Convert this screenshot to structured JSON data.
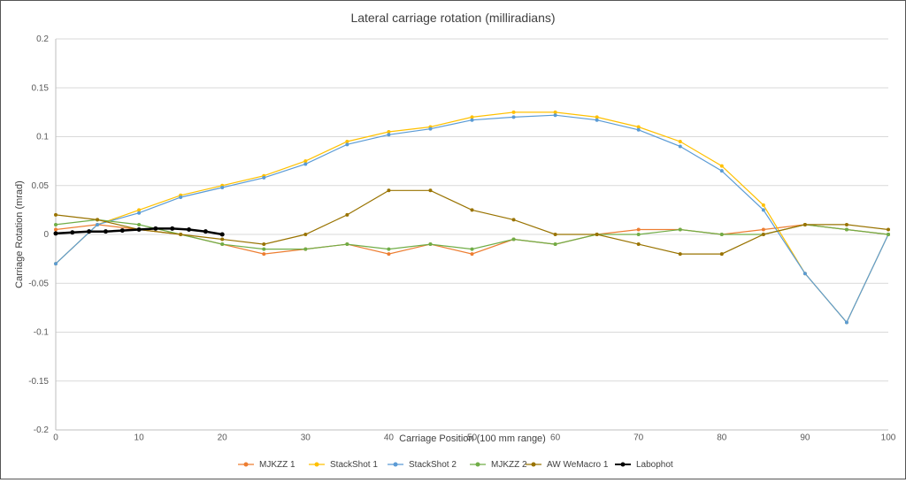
{
  "chart_data": {
    "type": "line",
    "title": "Lateral carriage rotation (milliradians)",
    "xlabel": "Carriage Position (100 mm range)",
    "ylabel": "Carriage Rotation (mrad)",
    "xlim": [
      0,
      100
    ],
    "ylim": [
      -0.2,
      0.2
    ],
    "x_ticks": [
      "0",
      "10",
      "20",
      "30",
      "40",
      "50",
      "60",
      "70",
      "80",
      "90",
      "100"
    ],
    "y_ticks": [
      "0.2",
      "0.15",
      "0.1",
      "0.05",
      "0",
      "-0.05",
      "-0.1",
      "-0.15",
      "-0.2"
    ],
    "grid": "horizontal",
    "legend_position": "bottom",
    "series": [
      {
        "name": "MJKZZ 1",
        "color": "#ED7D31",
        "x": [
          0,
          5,
          10,
          15,
          20,
          25,
          30,
          35,
          40,
          45,
          50,
          55,
          60,
          65,
          70,
          75,
          80,
          85,
          90,
          95,
          100
        ],
        "y": [
          0.005,
          0.01,
          0.005,
          0.0,
          -0.01,
          -0.02,
          -0.015,
          -0.01,
          -0.02,
          -0.01,
          -0.02,
          -0.005,
          -0.01,
          0.0,
          0.005,
          0.005,
          0.0,
          0.005,
          0.01,
          0.005,
          0.0
        ]
      },
      {
        "name": "StackShot 1",
        "color": "#FFC000",
        "x": [
          0,
          5,
          10,
          15,
          20,
          25,
          30,
          35,
          40,
          45,
          50,
          55,
          60,
          65,
          70,
          75,
          80,
          85,
          90,
          95,
          100
        ],
        "y": [
          -0.03,
          0.01,
          0.025,
          0.04,
          0.05,
          0.06,
          0.075,
          0.095,
          0.105,
          0.11,
          0.12,
          0.125,
          0.125,
          0.12,
          0.11,
          0.095,
          0.07,
          0.03,
          -0.04,
          -0.09,
          0.0
        ]
      },
      {
        "name": "StackShot 2",
        "color": "#5B9BD5",
        "x": [
          0,
          5,
          10,
          15,
          20,
          25,
          30,
          35,
          40,
          45,
          50,
          55,
          60,
          65,
          70,
          75,
          80,
          85,
          90,
          95,
          100
        ],
        "y": [
          -0.03,
          0.01,
          0.022,
          0.038,
          0.048,
          0.058,
          0.072,
          0.092,
          0.102,
          0.108,
          0.117,
          0.12,
          0.122,
          0.117,
          0.107,
          0.09,
          0.065,
          0.025,
          -0.04,
          -0.09,
          0.0
        ]
      },
      {
        "name": "MJKZZ 2",
        "color": "#70AD47",
        "x": [
          0,
          5,
          10,
          15,
          20,
          25,
          30,
          35,
          40,
          45,
          50,
          55,
          60,
          65,
          70,
          75,
          80,
          85,
          90,
          95,
          100
        ],
        "y": [
          0.01,
          0.015,
          0.01,
          0.0,
          -0.01,
          -0.015,
          -0.015,
          -0.01,
          -0.015,
          -0.01,
          -0.015,
          -0.005,
          -0.01,
          0.0,
          0.0,
          0.005,
          0.0,
          0.0,
          0.01,
          0.005,
          0.0
        ]
      },
      {
        "name": "AW WeMacro 1",
        "color": "#997300",
        "x": [
          0,
          5,
          10,
          15,
          20,
          25,
          30,
          35,
          40,
          45,
          50,
          55,
          60,
          65,
          70,
          75,
          80,
          85,
          90,
          95,
          100
        ],
        "y": [
          0.02,
          0.015,
          0.005,
          0.0,
          -0.005,
          -0.01,
          0.0,
          0.02,
          0.045,
          0.045,
          0.025,
          0.015,
          0.0,
          0.0,
          -0.01,
          -0.02,
          -0.02,
          0.0,
          0.01,
          0.01,
          0.005
        ]
      },
      {
        "name": "Labophot",
        "color": "#000000",
        "x": [
          0,
          2,
          4,
          6,
          8,
          10,
          12,
          14,
          16,
          18,
          20
        ],
        "y": [
          0.001,
          0.002,
          0.003,
          0.003,
          0.004,
          0.005,
          0.006,
          0.006,
          0.005,
          0.003,
          0.0
        ]
      }
    ]
  }
}
